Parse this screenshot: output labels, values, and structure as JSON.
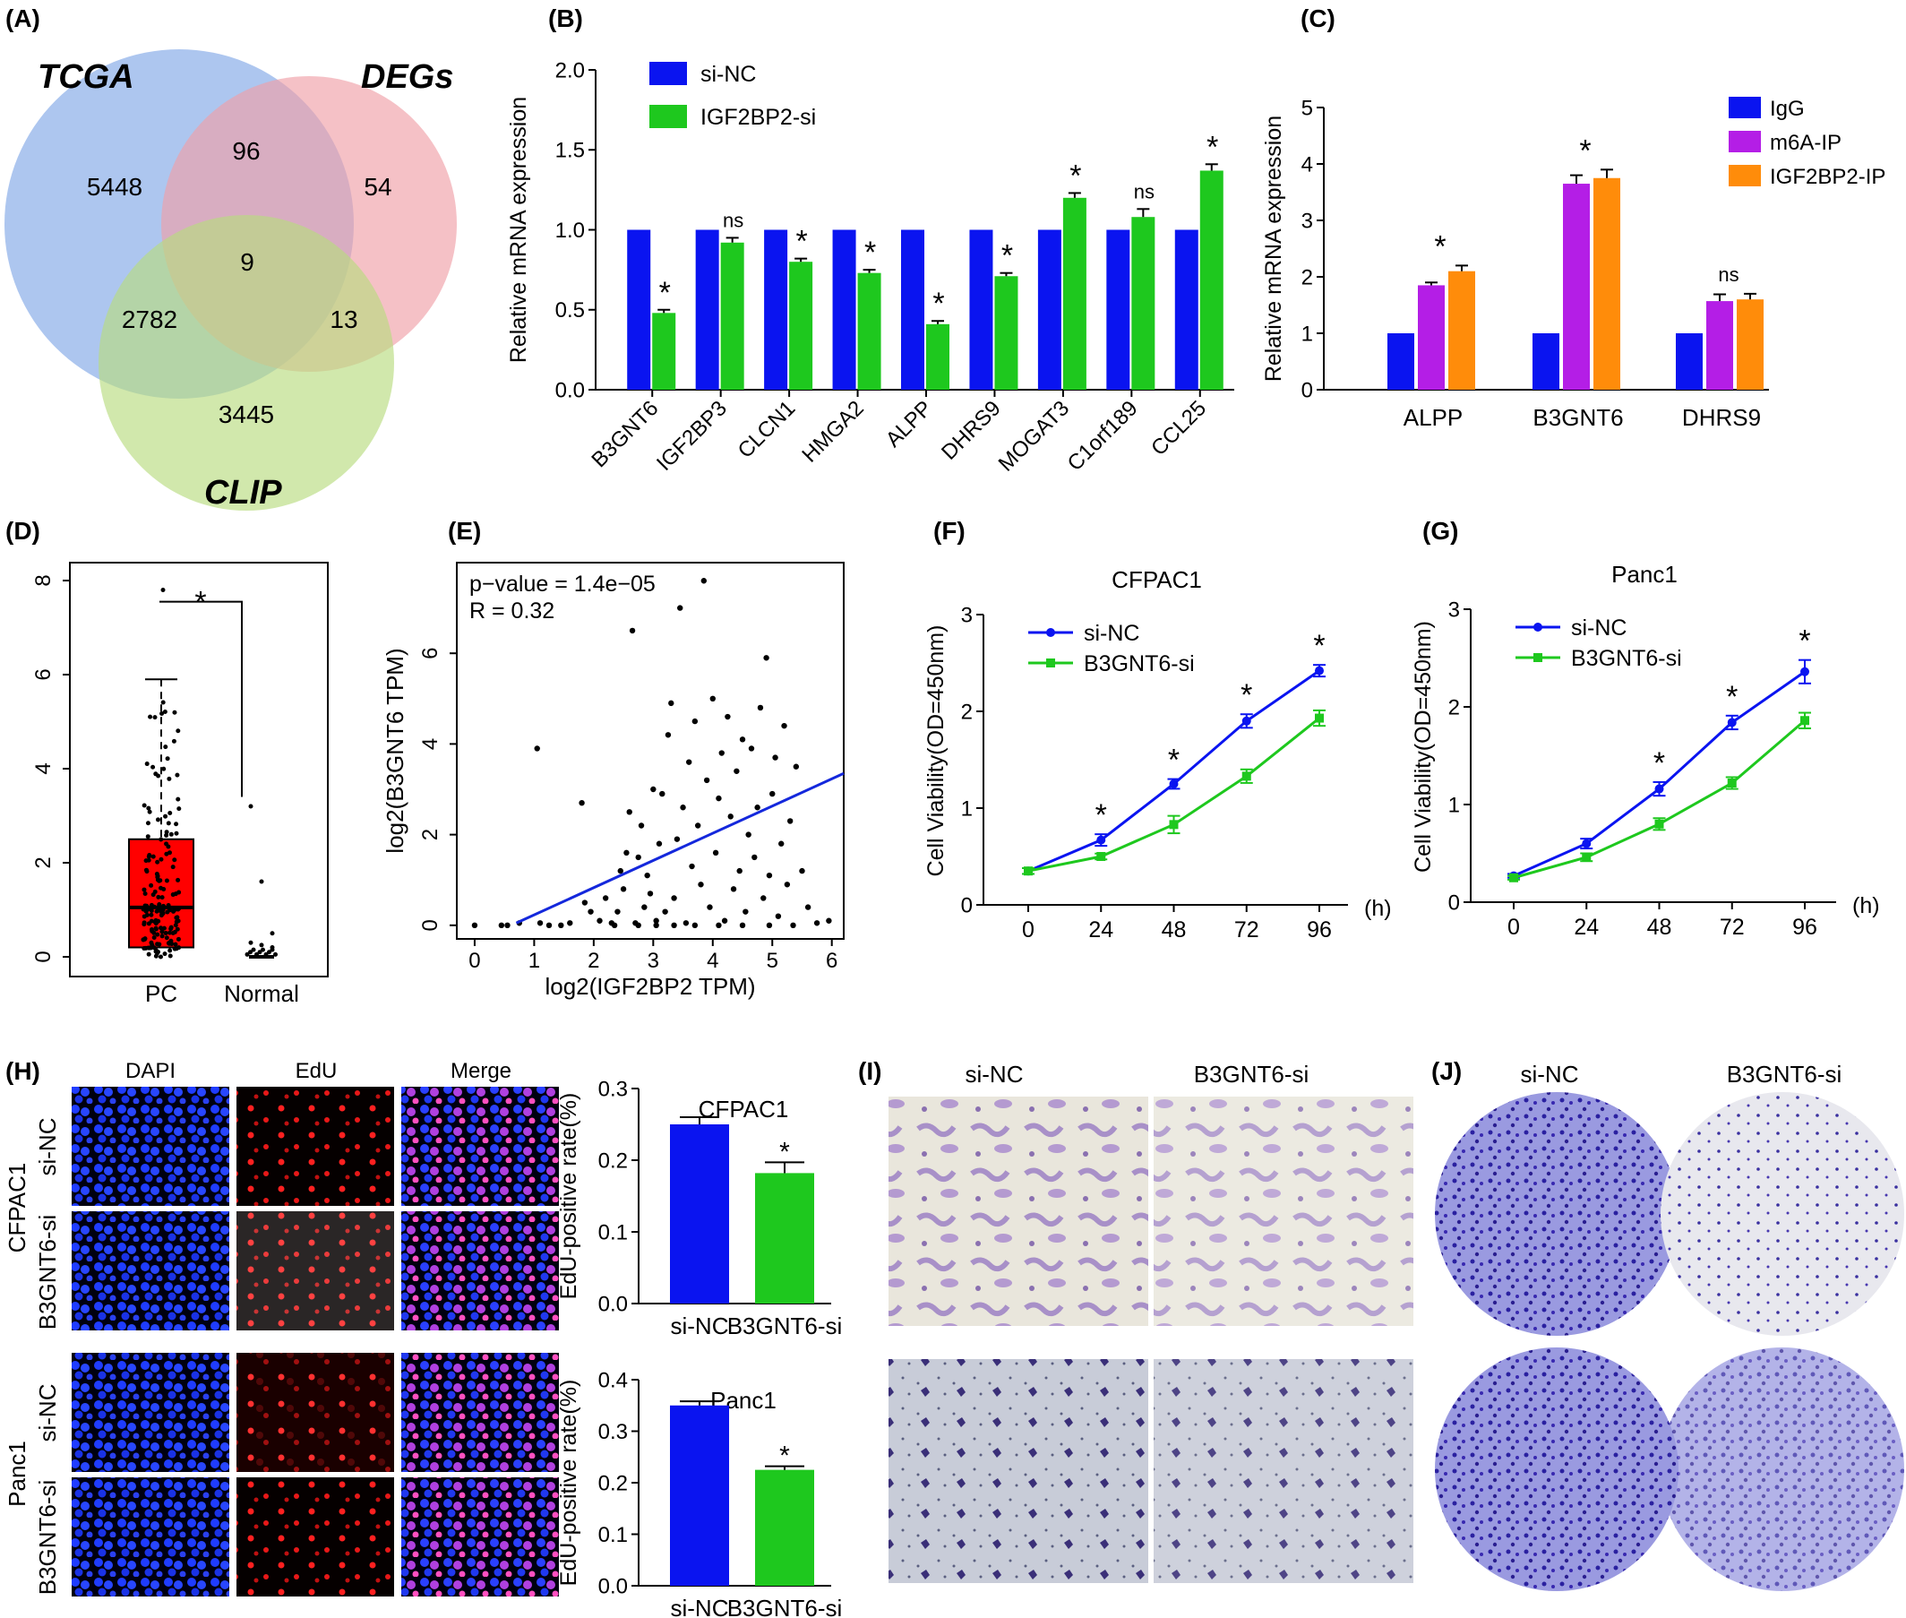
{
  "panel_labels": [
    "(A)",
    "(B)",
    "(C)",
    "(D)",
    "(E)",
    "(F)",
    "(G)",
    "(H)",
    "(I)",
    "(J)"
  ],
  "colors": {
    "blue": "#0a14f0",
    "green": "#1ec81e",
    "purple": "#b41ee6",
    "orange": "#ff8c0a",
    "red": "#ff0000",
    "venn_tcga": "#8aaee8",
    "venn_degs": "#f0a0a8",
    "venn_clip": "#b8dc80",
    "fit_line": "#1428dc"
  },
  "venn": {
    "set_labels": [
      "TCGA",
      "DEGs",
      "CLIP"
    ],
    "counts": {
      "tcga_only": "5448",
      "tcga_degs": "96",
      "degs_only": "54",
      "all": "9",
      "tcga_clip": "2782",
      "degs_clip": "13",
      "clip_only": "3445"
    }
  },
  "chart_data": [
    {
      "id": "B",
      "type": "bar",
      "ylabel": "Relative mRNA expression",
      "ylim": [
        0,
        2.0
      ],
      "yticks": [
        "0.0",
        "0.5",
        "1.0",
        "1.5",
        "2.0"
      ],
      "categories": [
        "B3GNT6",
        "IGF2BP3",
        "CLCN1",
        "HMGA2",
        "ALPP",
        "DHRS9",
        "MOGAT3",
        "C1orf189",
        "CCL25"
      ],
      "series": [
        {
          "name": "si-NC",
          "values": [
            1,
            1,
            1,
            1,
            1,
            1,
            1,
            1,
            1
          ]
        },
        {
          "name": "IGF2BP2-si",
          "values": [
            0.48,
            0.92,
            0.8,
            0.73,
            0.41,
            0.71,
            1.2,
            1.08,
            1.37
          ],
          "errors": [
            0.02,
            0.03,
            0.02,
            0.02,
            0.02,
            0.02,
            0.03,
            0.05,
            0.04
          ]
        }
      ],
      "annotations": [
        "*",
        "ns",
        "*",
        "*",
        "*",
        "*",
        "*",
        "ns",
        "*"
      ],
      "legend": "top-left"
    },
    {
      "id": "C",
      "type": "bar",
      "ylabel": "Relative mRNA expression",
      "ylim": [
        0,
        5
      ],
      "yticks": [
        "0",
        "1",
        "2",
        "3",
        "4",
        "5"
      ],
      "categories": [
        "ALPP",
        "B3GNT6",
        "DHRS9"
      ],
      "series": [
        {
          "name": "IgG",
          "values": [
            1,
            1,
            1
          ],
          "errors": [
            0,
            0,
            0
          ]
        },
        {
          "name": "m6A-IP",
          "values": [
            1.85,
            3.65,
            1.57
          ],
          "errors": [
            0.05,
            0.15,
            0.12
          ]
        },
        {
          "name": "IGF2BP2-IP",
          "values": [
            2.1,
            3.75,
            1.6
          ],
          "errors": [
            0.1,
            0.15,
            0.1
          ]
        }
      ],
      "annotations": [
        "*",
        "*",
        "ns"
      ],
      "legend": "top-right"
    },
    {
      "id": "D",
      "type": "box",
      "ylim": [
        0,
        8
      ],
      "yticks": [
        "0",
        "2",
        "4",
        "6",
        "8"
      ],
      "categories": [
        "PC",
        "Normal"
      ],
      "boxes": [
        {
          "name": "PC",
          "q1": 0.2,
          "median": 1.05,
          "q3": 2.5,
          "whisker_low": 0,
          "whisker_high": 5.9,
          "max": 7.8
        },
        {
          "name": "Normal",
          "q1": 0.0,
          "median": 0.0,
          "q3": 0.0,
          "whisker_low": 0,
          "whisker_high": 0.1,
          "outliers": [
            3.2,
            1.6,
            0.5,
            0.3,
            0.25,
            0.2
          ]
        }
      ],
      "annotation": "*"
    },
    {
      "id": "E",
      "type": "scatter",
      "xlabel": "log2(IGF2BP2 TPM)",
      "ylabel": "log2(B3GNT6 TPM)",
      "xlim": [
        -0.3,
        6.2
      ],
      "ylim": [
        -0.3,
        8.0
      ],
      "xticks": [
        "0",
        "1",
        "2",
        "3",
        "4",
        "5",
        "6"
      ],
      "yticks": [
        "0",
        "2",
        "4",
        "6"
      ],
      "annotation_lines": [
        "p−value = 1.4e−05",
        "R = 0.32"
      ],
      "fit_line": {
        "x": [
          0.7,
          6.2
        ],
        "y": [
          0.05,
          3.35
        ]
      },
      "points": [
        [
          0,
          0
        ],
        [
          0.45,
          0
        ],
        [
          0.55,
          0
        ],
        [
          0.75,
          0.05
        ],
        [
          1.05,
          3.9
        ],
        [
          1.1,
          0.05
        ],
        [
          1.25,
          0
        ],
        [
          1.45,
          0
        ],
        [
          1.6,
          0.05
        ],
        [
          1.8,
          2.7
        ],
        [
          1.85,
          0.5
        ],
        [
          1.95,
          0.3
        ],
        [
          2.1,
          0.1
        ],
        [
          2.2,
          0.6
        ],
        [
          2.3,
          0.05
        ],
        [
          2.4,
          0.3
        ],
        [
          2.45,
          1.2
        ],
        [
          2.5,
          0.8
        ],
        [
          2.55,
          1.6
        ],
        [
          2.6,
          2.5
        ],
        [
          2.65,
          6.5
        ],
        [
          2.7,
          0.05
        ],
        [
          2.75,
          1.5
        ],
        [
          2.8,
          2.2
        ],
        [
          2.85,
          0.4
        ],
        [
          2.9,
          1.1
        ],
        [
          2.95,
          0.7
        ],
        [
          3.0,
          3.0
        ],
        [
          3.05,
          0.1
        ],
        [
          3.1,
          1.8
        ],
        [
          3.15,
          2.9
        ],
        [
          3.2,
          0.3
        ],
        [
          3.25,
          4.2
        ],
        [
          3.3,
          4.9
        ],
        [
          3.35,
          0.6
        ],
        [
          3.4,
          1.9
        ],
        [
          3.45,
          7.0
        ],
        [
          3.5,
          2.6
        ],
        [
          3.55,
          0.05
        ],
        [
          3.6,
          3.6
        ],
        [
          3.65,
          1.3
        ],
        [
          3.7,
          4.5
        ],
        [
          3.75,
          2.2
        ],
        [
          3.8,
          0.9
        ],
        [
          3.85,
          7.6
        ],
        [
          3.9,
          3.2
        ],
        [
          3.95,
          0.4
        ],
        [
          4.0,
          5.0
        ],
        [
          4.05,
          1.6
        ],
        [
          4.1,
          2.8
        ],
        [
          4.15,
          3.8
        ],
        [
          4.2,
          0.1
        ],
        [
          4.25,
          4.6
        ],
        [
          4.3,
          2.4
        ],
        [
          4.35,
          0.8
        ],
        [
          4.4,
          3.4
        ],
        [
          4.45,
          1.2
        ],
        [
          4.5,
          4.1
        ],
        [
          4.55,
          0.3
        ],
        [
          4.6,
          2.0
        ],
        [
          4.65,
          3.9
        ],
        [
          4.7,
          1.5
        ],
        [
          4.75,
          2.6
        ],
        [
          4.8,
          4.8
        ],
        [
          4.85,
          0.6
        ],
        [
          4.9,
          5.9
        ],
        [
          4.95,
          1.1
        ],
        [
          5.0,
          2.9
        ],
        [
          5.05,
          3.7
        ],
        [
          5.1,
          0.2
        ],
        [
          5.15,
          1.8
        ],
        [
          5.2,
          4.4
        ],
        [
          5.25,
          0.9
        ],
        [
          5.3,
          2.3
        ],
        [
          5.4,
          3.5
        ],
        [
          5.5,
          1.2
        ],
        [
          5.6,
          0.4
        ],
        [
          5.75,
          0.05
        ],
        [
          5.95,
          0.1
        ],
        [
          2.35,
          0
        ],
        [
          2.75,
          0
        ],
        [
          3.05,
          0
        ],
        [
          3.35,
          0
        ],
        [
          3.7,
          0
        ],
        [
          4.1,
          0
        ],
        [
          4.5,
          0
        ],
        [
          4.95,
          0
        ],
        [
          5.35,
          0
        ]
      ]
    },
    {
      "id": "F",
      "type": "line",
      "title": "CFPAC1",
      "xlabel": "(h)",
      "ylabel": "Cell Viability(OD=450nm)",
      "x": [
        0,
        24,
        48,
        72,
        96
      ],
      "ylim": [
        0,
        3
      ],
      "yticks": [
        "0",
        "1",
        "2",
        "3"
      ],
      "series": [
        {
          "name": "si-NC",
          "values": [
            0.35,
            0.67,
            1.25,
            1.9,
            2.42
          ],
          "errors": [
            0.03,
            0.06,
            0.05,
            0.07,
            0.06
          ]
        },
        {
          "name": "B3GNT6-si",
          "values": [
            0.35,
            0.5,
            0.83,
            1.33,
            1.93
          ],
          "errors": [
            0.03,
            0.03,
            0.09,
            0.07,
            0.08
          ]
        }
      ],
      "annotations": [
        "",
        "*",
        "*",
        "*",
        "*"
      ],
      "legend": "top-left"
    },
    {
      "id": "G",
      "type": "line",
      "title": "Panc1",
      "xlabel": "(h)",
      "ylabel": "Cell Viability(OD=450nm)",
      "x": [
        0,
        24,
        48,
        72,
        96
      ],
      "ylim": [
        0,
        3
      ],
      "yticks": [
        "0",
        "1",
        "2",
        "3"
      ],
      "series": [
        {
          "name": "si-NC",
          "values": [
            0.27,
            0.6,
            1.16,
            1.84,
            2.36
          ],
          "errors": [
            0.02,
            0.05,
            0.07,
            0.07,
            0.12
          ]
        },
        {
          "name": "B3GNT6-si",
          "values": [
            0.25,
            0.46,
            0.8,
            1.22,
            1.86
          ],
          "errors": [
            0.02,
            0.04,
            0.06,
            0.06,
            0.08
          ]
        }
      ],
      "annotations": [
        "",
        "",
        "*",
        "*",
        "*"
      ],
      "legend": "top-left"
    },
    {
      "id": "H1",
      "type": "bar",
      "title": "CFPAC1",
      "ylabel": "EdU-positive rate(%)",
      "ylim": [
        0,
        0.3
      ],
      "yticks": [
        "0.0",
        "0.1",
        "0.2",
        "0.3"
      ],
      "categories": [
        "si-NC",
        "B3GNT6-si"
      ],
      "values": [
        0.25,
        0.182
      ],
      "errors": [
        0.01,
        0.015
      ],
      "annotations": [
        "",
        "*"
      ]
    },
    {
      "id": "H2",
      "type": "bar",
      "title": "Panc1",
      "ylabel": "EdU-positive rate(%)",
      "ylim": [
        0,
        0.4
      ],
      "yticks": [
        "0.0",
        "0.1",
        "0.2",
        "0.3",
        "0.4"
      ],
      "categories": [
        "si-NC",
        "B3GNT6-si"
      ],
      "values": [
        0.35,
        0.225
      ],
      "errors": [
        0.008,
        0.007
      ],
      "annotations": [
        "",
        "*"
      ]
    }
  ],
  "microscopy": {
    "col_headers": [
      "DAPI",
      "EdU",
      "Merge"
    ],
    "cfpac1_label": "CFPAC1",
    "panc1_label": "Panc1",
    "row_labels": [
      "si-NC",
      "B3GNT6-si",
      "si-NC",
      "B3GNT6-si"
    ]
  },
  "transwell": {
    "col_headers": [
      "si-NC",
      "B3GNT6-si"
    ]
  },
  "colony": {
    "col_headers": [
      "si-NC",
      "B3GNT6-si"
    ]
  }
}
